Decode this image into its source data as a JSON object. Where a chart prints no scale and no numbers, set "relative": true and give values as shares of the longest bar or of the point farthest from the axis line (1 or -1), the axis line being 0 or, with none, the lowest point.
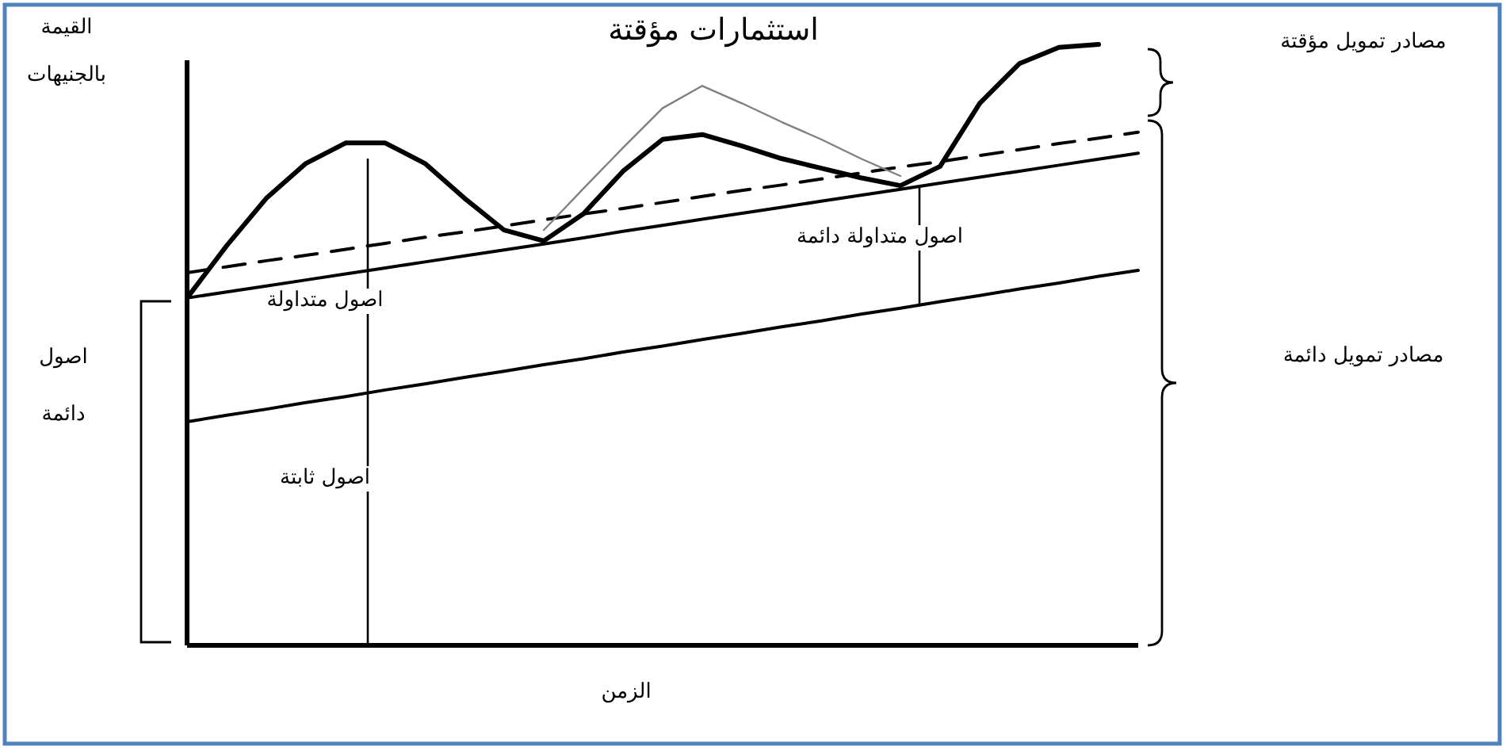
{
  "chart_data": {
    "type": "line",
    "relative": true,
    "title": "استثمارات مؤقتة",
    "xlabel": "الزمن",
    "ylabel": "القيمة بالجنيهات",
    "annotations": [
      "مصادر تمويل مؤقتة",
      "مصادر تمويل دائمة",
      "اصول متداولة دائمة",
      "اصول متداولة",
      "اصول ثابتة",
      "اصول دائمة"
    ],
    "categories": [
      null,
      null,
      null,
      null,
      null,
      null,
      null,
      null,
      null,
      null,
      null,
      null,
      null,
      null,
      null,
      null,
      null,
      null,
      null,
      null,
      null,
      null,
      null,
      null,
      null
    ],
    "series": [
      {
        "color": "#000000",
        "line_style": "solid",
        "values": [
          0.372,
          0.383,
          0.393,
          0.404,
          0.414,
          0.425,
          0.435,
          0.446,
          0.456,
          0.467,
          0.477,
          0.488,
          0.498,
          0.509,
          0.519,
          0.53,
          0.54,
          0.551,
          0.561,
          0.572,
          0.582,
          0.593,
          0.603,
          0.614,
          0.624
        ]
      },
      {
        "color": "#000000",
        "line_style": "solid",
        "values": [
          0.578,
          0.588,
          0.598,
          0.608,
          0.618,
          0.628,
          0.638,
          0.648,
          0.658,
          0.668,
          0.678,
          0.689,
          0.699,
          0.709,
          0.719,
          0.729,
          0.739,
          0.749,
          0.759,
          0.769,
          0.779,
          0.789,
          0.799,
          0.809,
          0.819
        ]
      },
      {
        "color": "#000000",
        "line_style": "dashed",
        "values": [
          0.62,
          0.63,
          0.64,
          0.649,
          0.659,
          0.669,
          0.679,
          0.688,
          0.698,
          0.708,
          0.718,
          0.727,
          0.737,
          0.747,
          0.757,
          0.766,
          0.776,
          0.786,
          0.796,
          0.805,
          0.815,
          0.825,
          0.835,
          0.844,
          0.854
        ]
      },
      {
        "color": "#000000",
        "line_style": "solid",
        "values": [
          0.578,
          0.665,
          0.744,
          0.802,
          0.836,
          0.836,
          0.802,
          0.744,
          0.691,
          0.673,
          0.718,
          0.789,
          0.842,
          0.85,
          0.831,
          0.81,
          0.794,
          0.778,
          0.765,
          0.797,
          0.902,
          0.968,
          0.995,
          1.0,
          null
        ]
      },
      {
        "color": "#808080",
        "line_style": "solid",
        "values": [
          null,
          null,
          null,
          null,
          null,
          null,
          null,
          null,
          null,
          0.691,
          0.76,
          0.828,
          0.894,
          0.931,
          0.902,
          0.871,
          0.842,
          0.81,
          0.781,
          null,
          null,
          null,
          null,
          null,
          null
        ]
      }
    ]
  }
}
